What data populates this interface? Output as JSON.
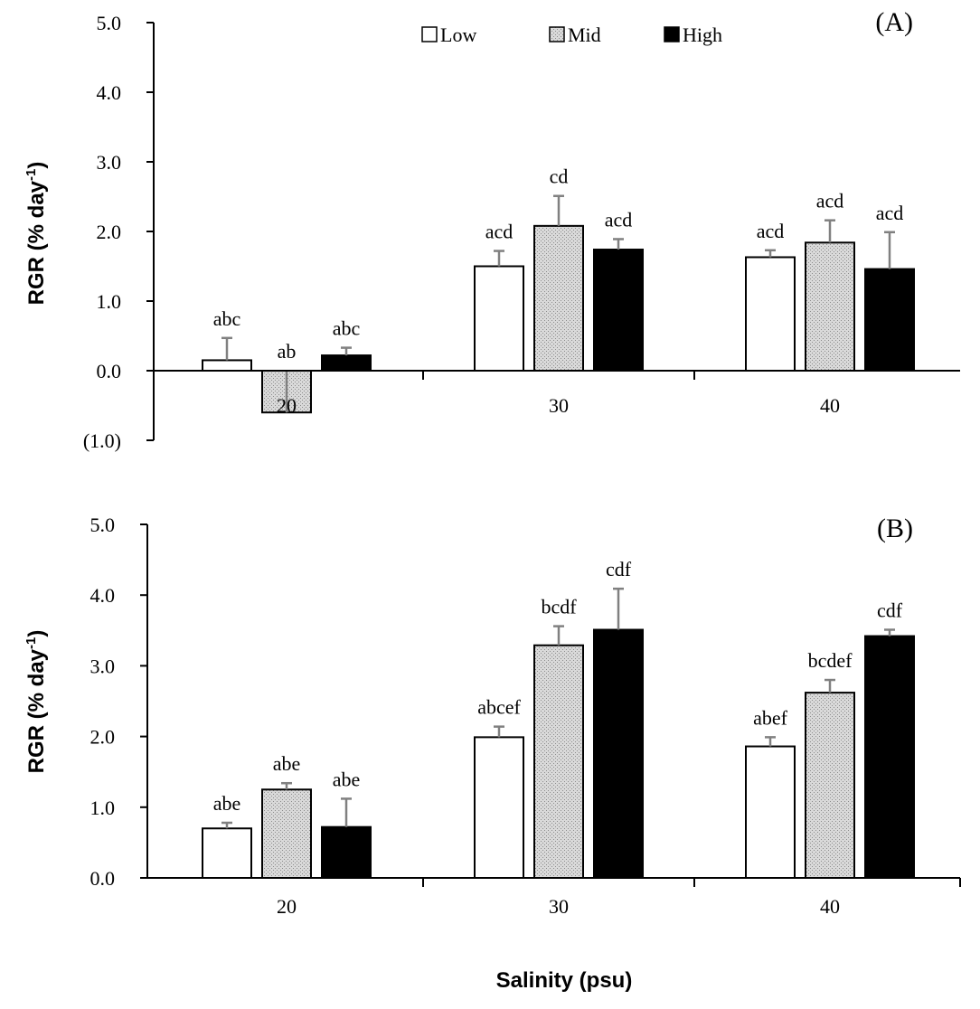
{
  "chart_data": [
    {
      "type": "bar",
      "panel_label": "(A)",
      "categories": [
        "20",
        "30",
        "40"
      ],
      "ylabel": "RGR (% day",
      "ylabel_sup": "-1",
      "ylabel_close": ")",
      "ylim": [
        -1.0,
        5.0
      ],
      "yticks": [
        {
          "value": 5.0,
          "label": "5.0"
        },
        {
          "value": 4.0,
          "label": "4.0"
        },
        {
          "value": 3.0,
          "label": "3.0"
        },
        {
          "value": 2.0,
          "label": "2.0"
        },
        {
          "value": 1.0,
          "label": "1.0"
        },
        {
          "value": 0.0,
          "label": "0.0"
        },
        {
          "value": -1.0,
          "label": "(1.0)",
          "color": "#c00000"
        }
      ],
      "series": [
        {
          "name": "Low",
          "fill": "#ffffff",
          "values": [
            0.15,
            1.5,
            1.63
          ],
          "errors": [
            0.32,
            0.22,
            0.1
          ],
          "sig": [
            "abc",
            "acd",
            "acd"
          ]
        },
        {
          "name": "Mid",
          "fill": "#d9d9d9",
          "values": [
            -0.6,
            2.08,
            1.84
          ],
          "errors": [
            0.0,
            0.43,
            0.32
          ],
          "sig": [
            "ab",
            "cd",
            "acd"
          ]
        },
        {
          "name": "High",
          "fill": "#000000",
          "values": [
            0.22,
            1.74,
            1.46
          ],
          "errors": [
            0.11,
            0.15,
            0.53
          ],
          "sig": [
            "abc",
            "acd",
            "acd"
          ]
        }
      ],
      "legend": {
        "position": "top-center",
        "items": [
          "Low",
          "Mid",
          "High"
        ]
      }
    },
    {
      "type": "bar",
      "panel_label": "(B)",
      "categories": [
        "20",
        "30",
        "40"
      ],
      "ylabel": "RGR (% day",
      "ylabel_sup": "-1",
      "ylabel_close": ")",
      "ylim": [
        0.0,
        5.0
      ],
      "yticks": [
        {
          "value": 5.0,
          "label": "5.0"
        },
        {
          "value": 4.0,
          "label": "4.0"
        },
        {
          "value": 3.0,
          "label": "3.0"
        },
        {
          "value": 2.0,
          "label": "2.0"
        },
        {
          "value": 1.0,
          "label": "1.0"
        },
        {
          "value": 0.0,
          "label": "0.0"
        }
      ],
      "series": [
        {
          "name": "Low",
          "fill": "#ffffff",
          "values": [
            0.7,
            1.99,
            1.86
          ],
          "errors": [
            0.08,
            0.15,
            0.13
          ],
          "sig": [
            "abe",
            "abcef",
            "abef"
          ]
        },
        {
          "name": "Mid",
          "fill": "#d9d9d9",
          "values": [
            1.25,
            3.29,
            2.62
          ],
          "errors": [
            0.09,
            0.27,
            0.18
          ],
          "sig": [
            "abe",
            "bcdf",
            "bcdef"
          ]
        },
        {
          "name": "High",
          "fill": "#000000",
          "values": [
            0.72,
            3.51,
            3.42
          ],
          "errors": [
            0.4,
            0.58,
            0.09
          ],
          "sig": [
            "abe",
            "cdf",
            "cdf"
          ]
        }
      ]
    }
  ],
  "xlabel": "Salinity (psu)",
  "colors": {
    "axis": "#000000",
    "error_bar": "#808080",
    "negative_tick": "#c00000"
  }
}
